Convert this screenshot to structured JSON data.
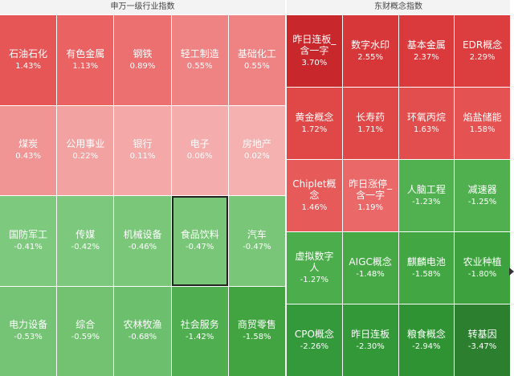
{
  "left": {
    "title": "申万一级行业指数",
    "cells": [
      {
        "label": "石油石化",
        "value": "1.43%",
        "color": "#e65656"
      },
      {
        "label": "有色金属",
        "value": "1.13%",
        "color": "#ea6262"
      },
      {
        "label": "钢铁",
        "value": "0.89%",
        "color": "#ed7070"
      },
      {
        "label": "轻工制造",
        "value": "0.55%",
        "color": "#ef8282"
      },
      {
        "label": "基础化工",
        "value": "0.55%",
        "color": "#ef8282"
      },
      {
        "label": "煤炭",
        "value": "0.43%",
        "color": "#f19494"
      },
      {
        "label": "公用事业",
        "value": "0.22%",
        "color": "#f3a2a2"
      },
      {
        "label": "银行",
        "value": "0.11%",
        "color": "#f4a8a8"
      },
      {
        "label": "电子",
        "value": "0.06%",
        "color": "#f4acac"
      },
      {
        "label": "房地产",
        "value": "0.02%",
        "color": "#f5b0b0"
      },
      {
        "label": "国防军工",
        "value": "-0.41%",
        "color": "#7dc97d"
      },
      {
        "label": "传媒",
        "value": "-0.42%",
        "color": "#7cc87c"
      },
      {
        "label": "机械设备",
        "value": "-0.46%",
        "color": "#7ac77a"
      },
      {
        "label": "食品饮料",
        "value": "-0.47%",
        "color": "#79c679",
        "selected": true
      },
      {
        "label": "汽车",
        "value": "-0.47%",
        "color": "#79c679"
      },
      {
        "label": "电力设备",
        "value": "-0.53%",
        "color": "#75c475"
      },
      {
        "label": "综合",
        "value": "-0.59%",
        "color": "#72c272"
      },
      {
        "label": "农林牧渔",
        "value": "-0.68%",
        "color": "#6cbf6c"
      },
      {
        "label": "社会服务",
        "value": "-1.42%",
        "color": "#4fae4f"
      },
      {
        "label": "商贸零售",
        "value": "-1.58%",
        "color": "#41a441"
      }
    ]
  },
  "right": {
    "title": "东财概念指数",
    "cells": [
      {
        "label": "昨日连板_含一字",
        "value": "3.70%",
        "color": "#c8282c"
      },
      {
        "label": "数字水印",
        "value": "2.55%",
        "color": "#d8373a"
      },
      {
        "label": "基本金属",
        "value": "2.37%",
        "color": "#da3a3c"
      },
      {
        "label": "EDR概念",
        "value": "2.29%",
        "color": "#dc3d3f"
      },
      {
        "label": "黄金概念",
        "value": "1.72%",
        "color": "#e04848"
      },
      {
        "label": "长寿药",
        "value": "1.71%",
        "color": "#e04848"
      },
      {
        "label": "环氧丙烷",
        "value": "1.63%",
        "color": "#e24e4e"
      },
      {
        "label": "焰盐储能",
        "value": "1.58%",
        "color": "#e45252"
      },
      {
        "label": "Chiplet概念",
        "value": "1.46%",
        "color": "#e65a5a"
      },
      {
        "label": "昨日涨停_含一字",
        "value": "1.19%",
        "color": "#ea6868"
      },
      {
        "label": "人脑工程",
        "value": "-1.23%",
        "color": "#51b151"
      },
      {
        "label": "减速器",
        "value": "-1.25%",
        "color": "#50b050"
      },
      {
        "label": "虚拟数字人",
        "value": "-1.27%",
        "color": "#4cad4c"
      },
      {
        "label": "AIGC概念",
        "value": "-1.48%",
        "color": "#46a946"
      },
      {
        "label": "麒麟电池",
        "value": "-1.58%",
        "color": "#42a642"
      },
      {
        "label": "农业种植",
        "value": "-1.80%",
        "color": "#3da23d"
      },
      {
        "label": "CPO概念",
        "value": "-2.26%",
        "color": "#34993a"
      },
      {
        "label": "昨日连板",
        "value": "-2.30%",
        "color": "#339838"
      },
      {
        "label": "粮食概念",
        "value": "-2.94%",
        "color": "#2f9334"
      },
      {
        "label": "转基因",
        "value": "-3.47%",
        "color": "#2b7f2e"
      }
    ]
  }
}
